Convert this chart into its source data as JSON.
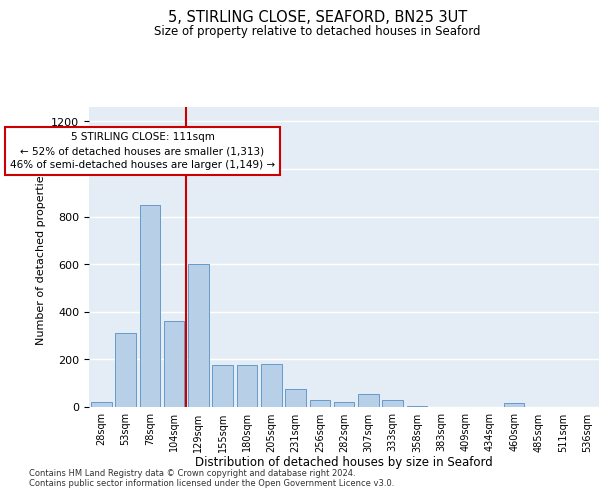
{
  "title1": "5, STIRLING CLOSE, SEAFORD, BN25 3UT",
  "title2": "Size of property relative to detached houses in Seaford",
  "xlabel": "Distribution of detached houses by size in Seaford",
  "ylabel": "Number of detached properties",
  "bar_color": "#b8cfe8",
  "bar_edge_color": "#6699cc",
  "bg_color": "#e4edf5",
  "grid_color": "#ffffff",
  "categories": [
    "28sqm",
    "53sqm",
    "78sqm",
    "104sqm",
    "129sqm",
    "155sqm",
    "180sqm",
    "205sqm",
    "231sqm",
    "256sqm",
    "282sqm",
    "307sqm",
    "333sqm",
    "358sqm",
    "383sqm",
    "409sqm",
    "434sqm",
    "460sqm",
    "485sqm",
    "511sqm",
    "536sqm"
  ],
  "values": [
    20,
    310,
    850,
    360,
    600,
    175,
    175,
    180,
    75,
    30,
    20,
    55,
    30,
    5,
    2,
    0,
    0,
    18,
    0,
    0,
    0
  ],
  "ylim": [
    0,
    1260
  ],
  "yticks": [
    0,
    200,
    400,
    600,
    800,
    1000,
    1200
  ],
  "annotation_text": "5 STIRLING CLOSE: 111sqm\n← 52% of detached houses are smaller (1,313)\n46% of semi-detached houses are larger (1,149) →",
  "vline_x": 3.5,
  "box_color": "#cc0000",
  "footer1": "Contains HM Land Registry data © Crown copyright and database right 2024.",
  "footer2": "Contains public sector information licensed under the Open Government Licence v3.0."
}
